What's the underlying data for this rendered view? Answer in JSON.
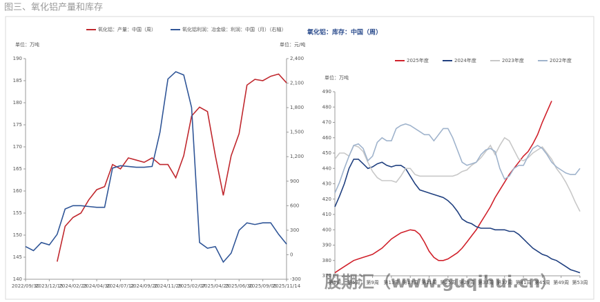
{
  "header": {
    "title": "图三、氧化铝产量和库存"
  },
  "watermark": "股期汇（www.guqihui.cn）",
  "chart_data": [
    {
      "type": "line",
      "ylabel": "单位：万吨",
      "y2label": "单位：元/吨",
      "categories": [
        "2022/09/30",
        null,
        null,
        "2023/12/15",
        null,
        null,
        "2024/02/23",
        null,
        null,
        "2024/04/30",
        null,
        null,
        "2024/07/12",
        null,
        null,
        "2024/09/20",
        null,
        null,
        "2024/11/29",
        null,
        null,
        "2025/02/07",
        null,
        null,
        "2025/04/25",
        null,
        null,
        "2025/06/30",
        null,
        null,
        "2025/09/05",
        null,
        null,
        "2025/11/14"
      ],
      "ylim": [
        140,
        190
      ],
      "yticks": [
        140,
        145,
        150,
        155,
        160,
        165,
        170,
        175,
        180,
        185,
        190
      ],
      "y2lim": [
        -300,
        2400
      ],
      "y2ticks": [
        -300,
        0,
        300,
        600,
        900,
        {
          "value": 1200,
          "label": "1,200"
        },
        {
          "value": 1500,
          "label": "1,500"
        },
        {
          "value": 1800,
          "label": "1,800"
        },
        {
          "value": 2100,
          "label": "2,100"
        },
        {
          "value": 2400,
          "label": "2,400"
        }
      ],
      "series": [
        {
          "name": "氧化铝：产量：中国（周）",
          "color": "#c0272d",
          "values": [
            null,
            null,
            null,
            null,
            144,
            152,
            154,
            155,
            158,
            160.3,
            161,
            166,
            165,
            167.5,
            167,
            166.5,
            167.5,
            166,
            166,
            163,
            168,
            177,
            179,
            178,
            168,
            159,
            168,
            173,
            184,
            185.3,
            185,
            186,
            186.5,
            184.5
          ]
        },
        {
          "name": "氧化铝利润：冶金级：利润：中国（月）（右轴）",
          "color": "#2f5597",
          "axis": "y2",
          "values": [
            100,
            50,
            150,
            120,
            250,
            560,
            600,
            600,
            590,
            580,
            580,
            1060,
            1090,
            1080,
            1070,
            1070,
            1080,
            1500,
            2150,
            2240,
            2200,
            1800,
            150,
            80,
            100,
            -90,
            20,
            300,
            390,
            370,
            390,
            390,
            250,
            130
          ]
        }
      ]
    },
    {
      "type": "line",
      "title": "氧化铝：库存：中国（周）",
      "ylabel": "单位：万吨",
      "categories": [
        "第1周",
        null,
        null,
        null,
        "第5周",
        null,
        null,
        null,
        "第9周",
        null,
        null,
        null,
        "第13周",
        null,
        null,
        null,
        "第17周",
        null,
        null,
        null,
        "第21周",
        null,
        null,
        null,
        "第25周",
        null,
        null,
        null,
        "第29周",
        null,
        null,
        null,
        "第33周",
        null,
        null,
        null,
        "第37周",
        null,
        null,
        null,
        "第41周",
        null,
        null,
        null,
        "第45周",
        null,
        null,
        null,
        "第49周",
        null,
        null,
        null,
        "第53周"
      ],
      "ylim": [
        370,
        490
      ],
      "yticks": [
        370,
        380,
        390,
        400,
        410,
        420,
        430,
        440,
        450,
        460,
        470,
        480,
        490
      ],
      "series": [
        {
          "name": "2025年度",
          "color": "#d0202a",
          "values": [
            372,
            374,
            376,
            378,
            380,
            381,
            382,
            383,
            384,
            386,
            388,
            391,
            394,
            396,
            398,
            399,
            400,
            399.5,
            397,
            392,
            386,
            382,
            380,
            380,
            381,
            383,
            385,
            388,
            392,
            396,
            400,
            405,
            410,
            415,
            421,
            426,
            431,
            436,
            440,
            444,
            448,
            451,
            456,
            462,
            470,
            477,
            484,
            null,
            null,
            null,
            null,
            null,
            null
          ]
        },
        {
          "name": "2024年度",
          "color": "#1f3f7f",
          "values": [
            415,
            422,
            430,
            440,
            446,
            446,
            443,
            440,
            441,
            443,
            444,
            442,
            441,
            442,
            442,
            440,
            435,
            430,
            426,
            425,
            424,
            423,
            422,
            421,
            419,
            416,
            412,
            407,
            405,
            404,
            402,
            401,
            401,
            401,
            400,
            400,
            400,
            399,
            399,
            397,
            394,
            391,
            388,
            386,
            384,
            383,
            381,
            380,
            378,
            376,
            374,
            373,
            372
          ]
        },
        {
          "name": "2023年度",
          "color": "#c8c8c8",
          "values": [
            446,
            450,
            450,
            448,
            455,
            454,
            451,
            444,
            438,
            434,
            432,
            432,
            432,
            431,
            435,
            440,
            440,
            436,
            435,
            435,
            435,
            435,
            435,
            435,
            435,
            435,
            436,
            438,
            439,
            442,
            444,
            447,
            451,
            455,
            449,
            455,
            460,
            458,
            452,
            446,
            445,
            447,
            450,
            452,
            454,
            450,
            446,
            440,
            436,
            431,
            425,
            418,
            412
          ]
        },
        {
          "name": "2022年度",
          "color": "#9fb3cc",
          "values": [
            424,
            431,
            440,
            448,
            455,
            456,
            453,
            445,
            448,
            457,
            460,
            458,
            458,
            466,
            468,
            469,
            468,
            466,
            464,
            462,
            462,
            458,
            462,
            466,
            466,
            460,
            452,
            444,
            442,
            443,
            444,
            449,
            452,
            453,
            451,
            440,
            433,
            435,
            440,
            442,
            442,
            448,
            453,
            455,
            453,
            449,
            444,
            441,
            439,
            437,
            436,
            436,
            440
          ]
        }
      ]
    }
  ]
}
